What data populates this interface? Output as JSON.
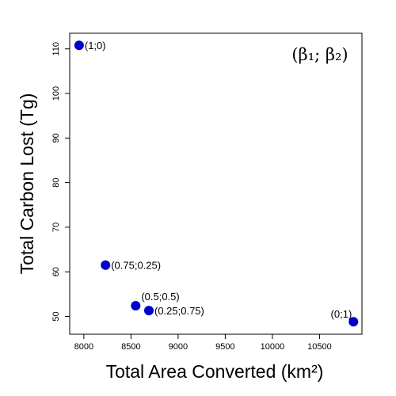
{
  "chart_data": {
    "type": "scatter",
    "xlabel": "Total Area Converted (km²)",
    "ylabel": "Total Carbon Lost (Tg)",
    "legend_text": "(β₁; β₂)",
    "xlim": [
      7850,
      10950
    ],
    "ylim": [
      46,
      113.5
    ],
    "xticks": [
      8000,
      8500,
      9000,
      9500,
      10000,
      10500
    ],
    "yticks": [
      50,
      60,
      70,
      80,
      90,
      100,
      110
    ],
    "point_color": "#0000cc",
    "grid": false,
    "points": [
      {
        "x": 7950,
        "y": 110.8,
        "label": "(1;0)",
        "label_pos": "right"
      },
      {
        "x": 8230,
        "y": 61.5,
        "label": "(0.75;0.25)",
        "label_pos": "right"
      },
      {
        "x": 8550,
        "y": 52.4,
        "label": "(0.5;0.5)",
        "label_pos": "above-right"
      },
      {
        "x": 8690,
        "y": 51.3,
        "label": "(0.25;0.75)",
        "label_pos": "right"
      },
      {
        "x": 10860,
        "y": 48.8,
        "label": "(0;1)",
        "label_pos": "above-left"
      }
    ]
  }
}
